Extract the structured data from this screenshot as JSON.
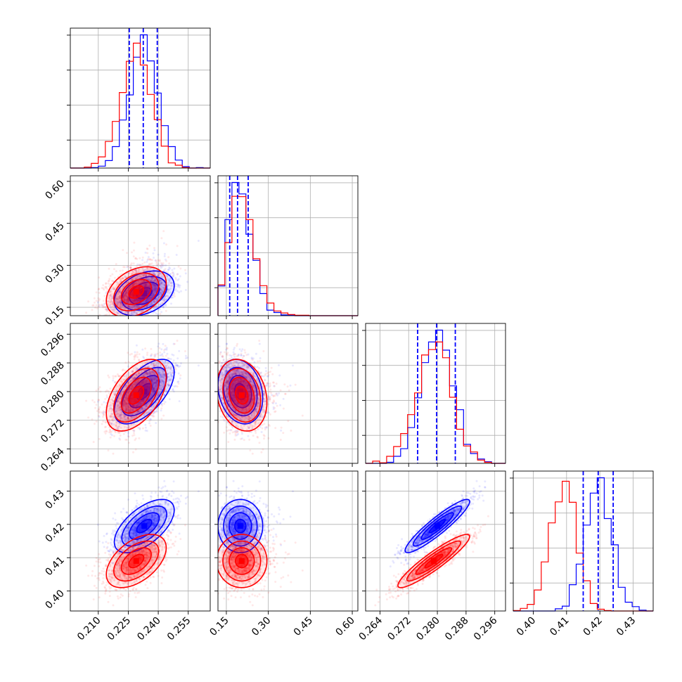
{
  "chart_data": {
    "type": "corner",
    "title": "",
    "parameters": [
      {
        "range": [
          0.196,
          0.266
        ],
        "ticks": [
          0.21,
          0.225,
          0.24,
          0.255
        ],
        "tick_labels": [
          "0.210",
          "0.225",
          "0.240",
          "0.255"
        ]
      },
      {
        "range": [
          0.12,
          0.62
        ],
        "ticks": [
          0.15,
          0.3,
          0.45,
          0.6
        ],
        "tick_labels": [
          "0.15",
          "0.30",
          "0.45",
          "0.60"
        ]
      },
      {
        "range": [
          0.26,
          0.299
        ],
        "ticks": [
          0.264,
          0.272,
          0.28,
          0.288,
          0.296
        ],
        "tick_labels": [
          "0.264",
          "0.272",
          "0.280",
          "0.288",
          "0.296"
        ]
      },
      {
        "range": [
          0.394,
          0.436
        ],
        "ticks": [
          0.4,
          0.41,
          0.42,
          0.43
        ],
        "tick_labels": [
          "0.40",
          "0.41",
          "0.42",
          "0.43"
        ]
      }
    ],
    "series": [
      {
        "color": "#0000ff",
        "mean": [
          0.233,
          0.2,
          0.28,
          0.4195
        ],
        "std": [
          0.0075,
          0.04,
          0.0045,
          0.004
        ],
        "corr": [
          [
            1,
            0.35,
            0.6,
            0.6
          ],
          [
            0.35,
            1,
            -0.2,
            0.0
          ],
          [
            0.6,
            -0.2,
            1,
            0.92
          ],
          [
            0.6,
            0.0,
            0.92,
            1
          ]
        ]
      },
      {
        "color": "#ff0000",
        "mean": [
          0.229,
          0.205,
          0.279,
          0.409
        ],
        "std": [
          0.0075,
          0.045,
          0.005,
          0.004
        ],
        "corr": [
          [
            1,
            0.35,
            0.5,
            0.5
          ],
          [
            0.35,
            1,
            -0.2,
            0.0
          ],
          [
            0.5,
            -0.2,
            1,
            0.92
          ],
          [
            0.5,
            0.0,
            0.92,
            1
          ]
        ]
      }
    ],
    "quantile_lines": {
      "color": "#0000ff",
      "style": "dashed",
      "values": [
        [
          0.2255,
          0.2325,
          0.2395
        ],
        [
          0.162,
          0.19,
          0.228
        ],
        [
          0.2745,
          0.2798,
          0.285
        ],
        [
          0.415,
          0.4195,
          0.424
        ]
      ]
    },
    "grid": true,
    "legend": "none"
  }
}
